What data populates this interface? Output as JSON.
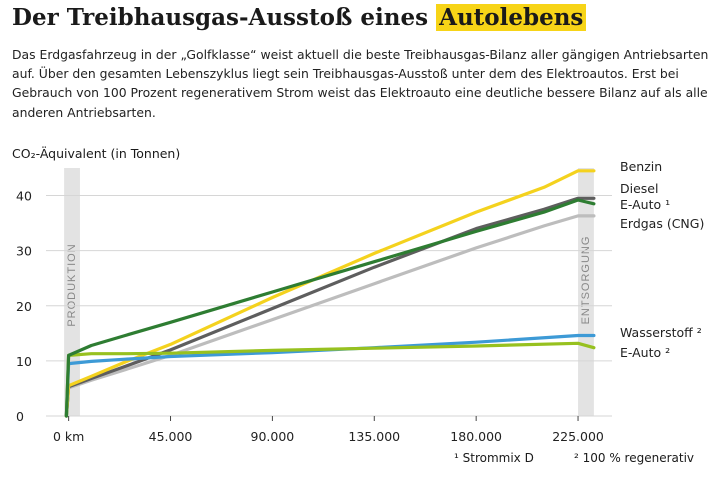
{
  "title": {
    "main": "Der Treibhausgas-Ausstoß eines",
    "highlight": "Autolebens"
  },
  "intro": "Das Erdgasfahrzeug in der „Golfklasse“ weist aktuell die beste Treibhausgas-Bilanz aller gängigen Antriebsarten auf. Über den gesamten Lebenszyklus liegt sein Treibhausgas-Ausstoß unter dem des Elektroautos. Erst bei Gebrauch von 100 Prozent regenerativem Strom weist das Elektroauto eine deutliche bessere Bilanz auf als alle anderen Antriebsarten.",
  "footnotes": {
    "one": "¹ Strommix D",
    "two": "² 100 % regenerativ"
  },
  "colors": {
    "benzin": "#f4d21e",
    "diesel": "#5e5e5e",
    "eauto1": "#2e7d32",
    "erdgas": "#bdbdbd",
    "wasserstoff": "#3d9ad6",
    "eauto2": "#97c11f",
    "band": "#e3e3e3"
  },
  "chart_data": {
    "type": "line",
    "ylabel": "CO₂-Äquivalent (in Tonnen)",
    "xlim": [
      -10000,
      240000
    ],
    "ylim": [
      0,
      45
    ],
    "yticks": [
      0,
      10,
      20,
      30,
      40
    ],
    "xticks": [
      {
        "value": 0,
        "label": "0 km"
      },
      {
        "value": 45000,
        "label": "45.000"
      },
      {
        "value": 90000,
        "label": "90.000"
      },
      {
        "value": 135000,
        "label": "135.000"
      },
      {
        "value": 180000,
        "label": "180.000"
      },
      {
        "value": 225000,
        "label": "225.000"
      }
    ],
    "bands": [
      {
        "label": "PRODUKTION",
        "from": -2000,
        "to": 5000
      },
      {
        "label": "ENTSORGUNG",
        "from": 225000,
        "to": 232000
      }
    ],
    "series": [
      {
        "name": "Benzin",
        "key": "benzin",
        "x": [
          -1000,
          0,
          10000,
          25000,
          45000,
          90000,
          135000,
          180000,
          210000,
          225000,
          232000
        ],
        "y": [
          0,
          5.5,
          7.2,
          9.8,
          13,
          21.5,
          29.5,
          37,
          41.5,
          44.5,
          44.5
        ]
      },
      {
        "name": "Diesel",
        "key": "diesel",
        "x": [
          -1000,
          0,
          10000,
          25000,
          45000,
          90000,
          135000,
          180000,
          210000,
          225000,
          232000
        ],
        "y": [
          0,
          5.3,
          6.8,
          9,
          12,
          19.5,
          27,
          34,
          37.5,
          39.5,
          39.5
        ]
      },
      {
        "name": "E-Auto ¹",
        "key": "eauto1",
        "x": [
          -1000,
          0,
          10000,
          25000,
          45000,
          90000,
          135000,
          180000,
          210000,
          225000,
          232000
        ],
        "y": [
          0,
          11,
          12.8,
          14.6,
          17,
          22.5,
          28,
          33.5,
          37,
          39.2,
          38.5
        ]
      },
      {
        "name": "Erdgas (CNG)",
        "key": "erdgas",
        "x": [
          -1000,
          0,
          10000,
          25000,
          45000,
          90000,
          135000,
          180000,
          210000,
          225000,
          232000
        ],
        "y": [
          0,
          5.1,
          6.5,
          8.4,
          11,
          17.5,
          24,
          30.5,
          34.5,
          36.3,
          36.3
        ]
      },
      {
        "name": "Wasserstoff ²",
        "key": "wasserstoff",
        "x": [
          -1000,
          0,
          10000,
          25000,
          45000,
          90000,
          135000,
          180000,
          225000,
          232000
        ],
        "y": [
          0,
          9.5,
          9.9,
          10.3,
          10.8,
          11.5,
          12.4,
          13.4,
          14.6,
          14.6
        ]
      },
      {
        "name": "E-Auto ²",
        "key": "eauto2",
        "x": [
          -1000,
          0,
          10000,
          25000,
          45000,
          90000,
          135000,
          180000,
          225000,
          232000
        ],
        "y": [
          0,
          11,
          11.3,
          11.3,
          11.4,
          11.9,
          12.3,
          12.7,
          13.2,
          12.4
        ]
      }
    ]
  }
}
